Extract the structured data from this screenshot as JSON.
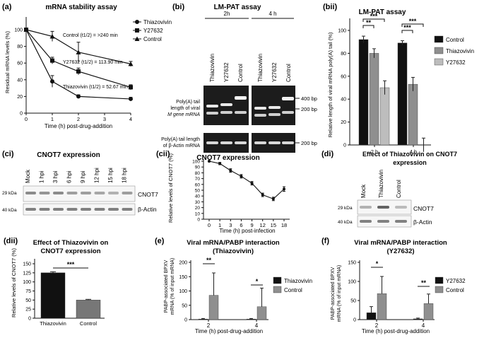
{
  "colors": {
    "black": "#111111",
    "grey": "#8f8f8f",
    "lightgrey": "#bdbdbd",
    "gel": "#1c1c1c",
    "band": "#e8e8e8"
  },
  "panel_labels": {
    "a": "(a)",
    "bi": "(bi)",
    "bii": "(bii)",
    "ci": "(ci)",
    "cii": "(cii)",
    "di": "(di)",
    "dii": "(dii)",
    "e": "(e)",
    "f": "(f)"
  },
  "chart_data": [
    {
      "id": "a",
      "type": "line",
      "title": "mRNA stability assay",
      "xlabel": "Time (h) post-drug-addition",
      "ylabel": "Residual mRNA levels (%)",
      "x": [
        0,
        1,
        2,
        4
      ],
      "xticks": [
        "0",
        "1",
        "2",
        "3",
        "4"
      ],
      "yticks": [
        "0",
        "20",
        "40",
        "60",
        "80",
        "100"
      ],
      "ylim": [
        0,
        100
      ],
      "series": [
        {
          "name": "Thiazovivin",
          "marker": "circle",
          "values": [
            100,
            38,
            20,
            17
          ],
          "err": [
            0,
            7,
            2,
            2
          ]
        },
        {
          "name": "Y27632",
          "marker": "square",
          "values": [
            100,
            63,
            50,
            31
          ],
          "err": [
            0,
            4,
            4,
            3
          ]
        },
        {
          "name": "Control",
          "marker": "triangle",
          "values": [
            100,
            92,
            73,
            59
          ],
          "err": [
            0,
            6,
            12,
            3
          ]
        }
      ],
      "annotations": [
        "Control (t1/2) = >240 min",
        "Y27632 (t1/2) = 113.90 min",
        "Thiazovivin (t1/2) = 52.67 min"
      ]
    },
    {
      "id": "bii",
      "type": "bar",
      "title": "LM-PAT assay",
      "ylabel": "Relative length of viral mRNA poly(A) tail (%)",
      "categories": [
        "2 h",
        "4 h"
      ],
      "ylim": [
        0,
        100
      ],
      "yticks": [
        "0",
        "20",
        "40",
        "60",
        "80",
        "100"
      ],
      "series": [
        {
          "name": "Control",
          "values": [
            92,
            89
          ],
          "err": [
            3,
            2
          ]
        },
        {
          "name": "Thiazovivin",
          "values": [
            80,
            53
          ],
          "err": [
            4,
            6
          ]
        },
        {
          "name": "Y27632",
          "values": [
            50,
            0
          ],
          "err": [
            6,
            6
          ]
        }
      ],
      "significance": [
        "**",
        "***",
        "***",
        "***"
      ]
    },
    {
      "id": "cii",
      "type": "line",
      "title": "CNOT7 expression",
      "xlabel": "Time (h) post-infection",
      "ylabel": "Relative levels of CNOT7 (%)",
      "x": [
        0,
        1,
        3,
        6,
        9,
        12,
        15,
        18
      ],
      "xticks": [
        "0",
        "1",
        "3",
        "6",
        "9",
        "12",
        "15",
        "18"
      ],
      "yticks": [
        "0",
        "10",
        "20",
        "30",
        "40",
        "50",
        "60",
        "70",
        "80",
        "90",
        "100"
      ],
      "ylim": [
        0,
        100
      ],
      "values": [
        100,
        96,
        84,
        74,
        62,
        42,
        35,
        52
      ],
      "err": [
        1,
        2,
        3,
        3,
        3,
        3,
        3,
        4
      ]
    },
    {
      "id": "dii",
      "type": "bar",
      "title": "Effect of Thiazovivin on CNOT7 expression",
      "ylabel": "Relative levels of CNOT7 (%)",
      "categories": [
        "Thiazovivin",
        "Control"
      ],
      "values": [
        125,
        50
      ],
      "err": [
        3,
        2
      ],
      "ylim": [
        0,
        150
      ],
      "yticks": [
        "0",
        "25",
        "50",
        "75",
        "100",
        "125",
        "150"
      ],
      "significance": "***"
    },
    {
      "id": "e",
      "type": "bar",
      "title": "Viral mRNA/PABP interaction (Thiazovivin)",
      "xlabel": "Time (h) post-drug-addition",
      "ylabel": "PABP-associated BPXV mRNA (% of input mRNA)",
      "categories": [
        "2",
        "4"
      ],
      "ylim": [
        0,
        200
      ],
      "yticks": [
        "0",
        "50",
        "100",
        "150",
        "200"
      ],
      "series": [
        {
          "name": "Thiazovivin",
          "values": [
            2,
            2
          ],
          "err": [
            2,
            2
          ]
        },
        {
          "name": "Control",
          "values": [
            85,
            45
          ],
          "err": [
            78,
            65
          ]
        }
      ],
      "significance": [
        "**",
        "*"
      ]
    },
    {
      "id": "f",
      "type": "bar",
      "title": "Viral mRNA/PABP interaction (Y27632)",
      "xlabel": "Time (h) post-drug-addition",
      "ylabel": "PABP-associated BPXV mRNA (% of input mRNA)",
      "categories": [
        "2",
        "4"
      ],
      "ylim": [
        0,
        150
      ],
      "yticks": [
        "0",
        "50",
        "100",
        "150"
      ],
      "series": [
        {
          "name": "Y27632",
          "values": [
            18,
            2
          ],
          "err": [
            16,
            2
          ]
        },
        {
          "name": "Control",
          "values": [
            68,
            42
          ],
          "err": [
            45,
            25
          ]
        }
      ],
      "significance": [
        "*",
        "**"
      ]
    }
  ],
  "gel": {
    "title": "LM-PAT assay",
    "time_labels": [
      "2h",
      "4 h"
    ],
    "lanes": [
      "Thiazovivin",
      "Y27632",
      "Control"
    ],
    "row1_label": [
      "Poly(A) tail",
      "length of viral",
      "M gene mRNA"
    ],
    "row2_label": [
      "Poly(A) tail length",
      "of β-Actin mRNA"
    ],
    "markers": [
      "400 bp",
      "200 bp",
      "200 bp"
    ]
  },
  "blot_ci": {
    "title": "CNOT7 expression",
    "lanes": [
      "Mock",
      "1 hpi",
      "3 hpi",
      "6 hpi",
      "9 hpi",
      "12 hpi",
      "15 hpi",
      "18 hpi"
    ],
    "size1": "29 kDa",
    "size2": "40 kDa",
    "label1": "CNOT7",
    "label2": "β-Actin"
  },
  "blot_di": {
    "title": "Effect of Thiazovivin on CNOT7 expression",
    "lanes": [
      "Mock",
      "Thiazovivin",
      "Control"
    ],
    "size1": "29 kDa",
    "size2": "40 kDa",
    "label1": "CNOT7",
    "label2": "β-Actin"
  }
}
